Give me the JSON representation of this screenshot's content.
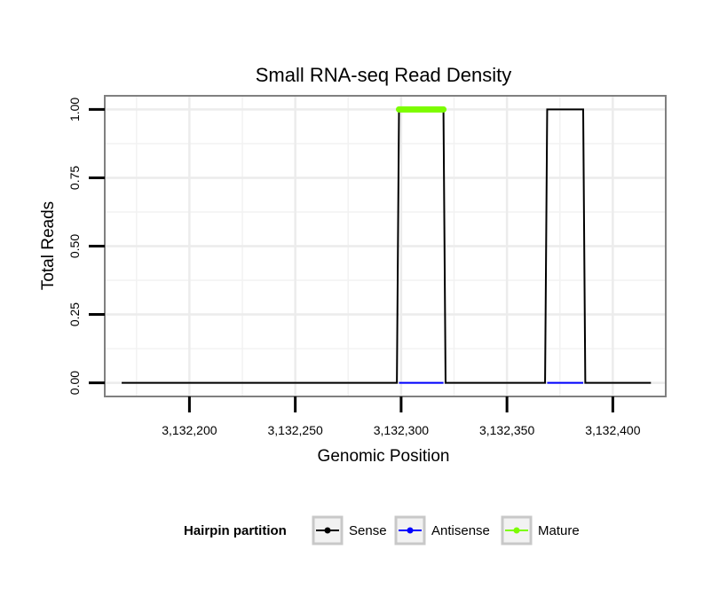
{
  "chart_data": {
    "type": "line",
    "title": "Small RNA-seq Read Density",
    "xlabel": "Genomic Position",
    "ylabel": "Total Reads",
    "xlim": [
      3132160,
      3132425
    ],
    "ylim": [
      -0.05,
      1.05
    ],
    "x_ticks": [
      3132200,
      3132250,
      3132300,
      3132350,
      3132400
    ],
    "x_tick_labels": [
      "3,132,200",
      "3,132,250",
      "3,132,300",
      "3,132,350",
      "3,132,400"
    ],
    "y_ticks": [
      0,
      0.25,
      0.5,
      0.75,
      1
    ],
    "y_tick_labels": [
      "0.00",
      "0.25",
      "0.50",
      "0.75",
      "1.00"
    ],
    "grid": true,
    "legend_position": "bottom",
    "series": [
      {
        "name": "Sense",
        "color": "#000000",
        "x": [
          3132168,
          3132298,
          3132299,
          3132320,
          3132321,
          3132368,
          3132369,
          3132386,
          3132387,
          3132418
        ],
        "y": [
          0,
          0,
          1,
          1,
          0,
          0,
          1,
          1,
          0,
          0
        ]
      },
      {
        "name": "Antisense",
        "color": "#0000ff",
        "x": [
          3132299,
          3132320,
          3132369,
          3132386
        ],
        "y": [
          0,
          0,
          0,
          0
        ],
        "segments": [
          [
            0,
            1
          ],
          [
            2,
            3
          ]
        ]
      },
      {
        "name": "Mature",
        "color": "#7cfc00",
        "x": [
          3132299,
          3132320
        ],
        "y": [
          1,
          1
        ]
      }
    ]
  },
  "legend": {
    "title": "Hairpin partition",
    "items": [
      "Sense",
      "Antisense",
      "Mature"
    ]
  }
}
